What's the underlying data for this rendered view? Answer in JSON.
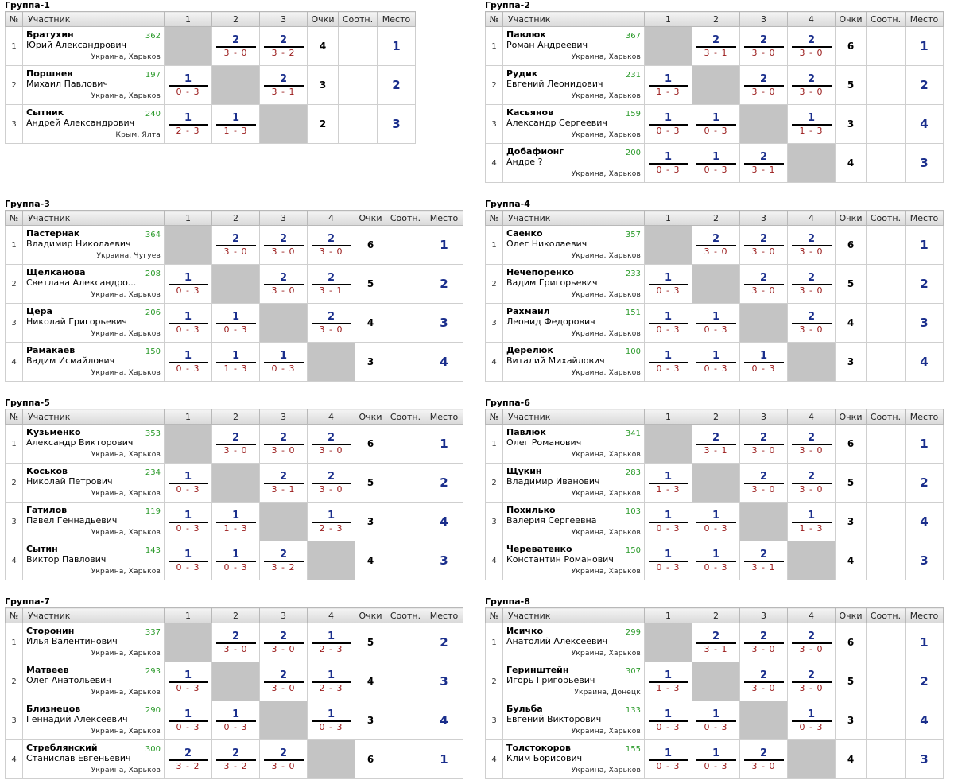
{
  "headers": {
    "num": "№",
    "participant": "Участник",
    "points": "Очки",
    "ratio": "Соотн.",
    "place": "Место"
  },
  "groups": [
    {
      "title": "Группа-1",
      "cols": [
        "1",
        "2",
        "3"
      ],
      "players": [
        {
          "num": "1",
          "surname": "Братухин",
          "name": "Юрий Александрович",
          "rating": "362",
          "location": "Украина, Харьков",
          "results": [
            null,
            {
              "p": "2",
              "s": "3 - 0"
            },
            {
              "p": "2",
              "s": "3 - 2"
            }
          ],
          "points": "4",
          "ratio": "",
          "place": "1"
        },
        {
          "num": "2",
          "surname": "Поршнев",
          "name": "Михаил Павлович",
          "rating": "197",
          "location": "Украина, Харьков",
          "results": [
            {
              "p": "1",
              "s": "0 - 3"
            },
            null,
            {
              "p": "2",
              "s": "3 - 1"
            }
          ],
          "points": "3",
          "ratio": "",
          "place": "2"
        },
        {
          "num": "3",
          "surname": "Сытник",
          "name": "Андрей Александрович",
          "rating": "240",
          "location": "Крым, Ялта",
          "results": [
            {
              "p": "1",
              "s": "2 - 3"
            },
            {
              "p": "1",
              "s": "1 - 3"
            },
            null
          ],
          "points": "2",
          "ratio": "",
          "place": "3"
        }
      ]
    },
    {
      "title": "Группа-2",
      "cols": [
        "1",
        "2",
        "3",
        "4"
      ],
      "players": [
        {
          "num": "1",
          "surname": "Павлюк",
          "name": "Роман Андреевич",
          "rating": "367",
          "location": "Украина, Харьков",
          "results": [
            null,
            {
              "p": "2",
              "s": "3 - 1"
            },
            {
              "p": "2",
              "s": "3 - 0"
            },
            {
              "p": "2",
              "s": "3 - 0"
            }
          ],
          "points": "6",
          "ratio": "",
          "place": "1"
        },
        {
          "num": "2",
          "surname": "Рудик",
          "name": "Евгений Леонидович",
          "rating": "231",
          "location": "Украина, Харьков",
          "results": [
            {
              "p": "1",
              "s": "1 - 3"
            },
            null,
            {
              "p": "2",
              "s": "3 - 0"
            },
            {
              "p": "2",
              "s": "3 - 0"
            }
          ],
          "points": "5",
          "ratio": "",
          "place": "2"
        },
        {
          "num": "3",
          "surname": "Касьянов",
          "name": "Александр Сергеевич",
          "rating": "159",
          "location": "Украина, Харьков",
          "results": [
            {
              "p": "1",
              "s": "0 - 3"
            },
            {
              "p": "1",
              "s": "0 - 3"
            },
            null,
            {
              "p": "1",
              "s": "1 - 3"
            }
          ],
          "points": "3",
          "ratio": "",
          "place": "4"
        },
        {
          "num": "4",
          "surname": "Добафионг",
          "name": "Андре ?",
          "rating": "200",
          "location": "Украина, Харьков",
          "results": [
            {
              "p": "1",
              "s": "0 - 3"
            },
            {
              "p": "1",
              "s": "0 - 3"
            },
            {
              "p": "2",
              "s": "3 - 1"
            },
            null
          ],
          "points": "4",
          "ratio": "",
          "place": "3"
        }
      ]
    },
    {
      "title": "Группа-3",
      "cols": [
        "1",
        "2",
        "3",
        "4"
      ],
      "players": [
        {
          "num": "1",
          "surname": "Пастернак",
          "name": "Владимир Николаевич",
          "rating": "364",
          "location": "Украина, Чугуев",
          "results": [
            null,
            {
              "p": "2",
              "s": "3 - 0"
            },
            {
              "p": "2",
              "s": "3 - 0"
            },
            {
              "p": "2",
              "s": "3 - 0"
            }
          ],
          "points": "6",
          "ratio": "",
          "place": "1"
        },
        {
          "num": "2",
          "surname": "Щелканова",
          "name": "Светлана Александро...",
          "rating": "208",
          "location": "Украина, Харьков",
          "results": [
            {
              "p": "1",
              "s": "0 - 3"
            },
            null,
            {
              "p": "2",
              "s": "3 - 0"
            },
            {
              "p": "2",
              "s": "3 - 1"
            }
          ],
          "points": "5",
          "ratio": "",
          "place": "2"
        },
        {
          "num": "3",
          "surname": "Цера",
          "name": "Николай Григорьевич",
          "rating": "206",
          "location": "Украина, Харьков",
          "results": [
            {
              "p": "1",
              "s": "0 - 3"
            },
            {
              "p": "1",
              "s": "0 - 3"
            },
            null,
            {
              "p": "2",
              "s": "3 - 0"
            }
          ],
          "points": "4",
          "ratio": "",
          "place": "3"
        },
        {
          "num": "4",
          "surname": "Рамакаев",
          "name": "Вадим Исмайлович",
          "rating": "150",
          "location": "Украина, Харьков",
          "results": [
            {
              "p": "1",
              "s": "0 - 3"
            },
            {
              "p": "1",
              "s": "1 - 3"
            },
            {
              "p": "1",
              "s": "0 - 3"
            },
            null
          ],
          "points": "3",
          "ratio": "",
          "place": "4"
        }
      ]
    },
    {
      "title": "Группа-4",
      "cols": [
        "1",
        "2",
        "3",
        "4"
      ],
      "players": [
        {
          "num": "1",
          "surname": "Саенко",
          "name": "Олег Николаевич",
          "rating": "357",
          "location": "Украина, Харьков",
          "results": [
            null,
            {
              "p": "2",
              "s": "3 - 0"
            },
            {
              "p": "2",
              "s": "3 - 0"
            },
            {
              "p": "2",
              "s": "3 - 0"
            }
          ],
          "points": "6",
          "ratio": "",
          "place": "1"
        },
        {
          "num": "2",
          "surname": "Нечепоренко",
          "name": "Вадим Григорьевич",
          "rating": "233",
          "location": "Украина, Харьков",
          "results": [
            {
              "p": "1",
              "s": "0 - 3"
            },
            null,
            {
              "p": "2",
              "s": "3 - 0"
            },
            {
              "p": "2",
              "s": "3 - 0"
            }
          ],
          "points": "5",
          "ratio": "",
          "place": "2"
        },
        {
          "num": "3",
          "surname": "Рахмаил",
          "name": "Леонид Федорович",
          "rating": "151",
          "location": "Украина, Харьков",
          "results": [
            {
              "p": "1",
              "s": "0 - 3"
            },
            {
              "p": "1",
              "s": "0 - 3"
            },
            null,
            {
              "p": "2",
              "s": "3 - 0"
            }
          ],
          "points": "4",
          "ratio": "",
          "place": "3"
        },
        {
          "num": "4",
          "surname": "Дерелюк",
          "name": "Виталий Михайлович",
          "rating": "100",
          "location": "Украина, Харьков",
          "results": [
            {
              "p": "1",
              "s": "0 - 3"
            },
            {
              "p": "1",
              "s": "0 - 3"
            },
            {
              "p": "1",
              "s": "0 - 3"
            },
            null
          ],
          "points": "3",
          "ratio": "",
          "place": "4"
        }
      ]
    },
    {
      "title": "Группа-5",
      "cols": [
        "1",
        "2",
        "3",
        "4"
      ],
      "players": [
        {
          "num": "1",
          "surname": "Кузьменко",
          "name": "Александр Викторович",
          "rating": "353",
          "location": "Украина, Харьков",
          "results": [
            null,
            {
              "p": "2",
              "s": "3 - 0"
            },
            {
              "p": "2",
              "s": "3 - 0"
            },
            {
              "p": "2",
              "s": "3 - 0"
            }
          ],
          "points": "6",
          "ratio": "",
          "place": "1"
        },
        {
          "num": "2",
          "surname": "Коськов",
          "name": "Николай Петрович",
          "rating": "234",
          "location": "Украина, Харьков",
          "results": [
            {
              "p": "1",
              "s": "0 - 3"
            },
            null,
            {
              "p": "2",
              "s": "3 - 1"
            },
            {
              "p": "2",
              "s": "3 - 0"
            }
          ],
          "points": "5",
          "ratio": "",
          "place": "2"
        },
        {
          "num": "3",
          "surname": "Гатилов",
          "name": "Павел Геннадьевич",
          "rating": "119",
          "location": "Украина, Харьков",
          "results": [
            {
              "p": "1",
              "s": "0 - 3"
            },
            {
              "p": "1",
              "s": "1 - 3"
            },
            null,
            {
              "p": "1",
              "s": "2 - 3"
            }
          ],
          "points": "3",
          "ratio": "",
          "place": "4"
        },
        {
          "num": "4",
          "surname": "Сытин",
          "name": "Виктор Павлович",
          "rating": "143",
          "location": "Украина, Харьков",
          "results": [
            {
              "p": "1",
              "s": "0 - 3"
            },
            {
              "p": "1",
              "s": "0 - 3"
            },
            {
              "p": "2",
              "s": "3 - 2"
            },
            null
          ],
          "points": "4",
          "ratio": "",
          "place": "3"
        }
      ]
    },
    {
      "title": "Группа-6",
      "cols": [
        "1",
        "2",
        "3",
        "4"
      ],
      "players": [
        {
          "num": "1",
          "surname": "Павлюк",
          "name": "Олег Романович",
          "rating": "341",
          "location": "Украина, Харьков",
          "results": [
            null,
            {
              "p": "2",
              "s": "3 - 1"
            },
            {
              "p": "2",
              "s": "3 - 0"
            },
            {
              "p": "2",
              "s": "3 - 0"
            }
          ],
          "points": "6",
          "ratio": "",
          "place": "1"
        },
        {
          "num": "2",
          "surname": "Щукин",
          "name": "Владимир Иванович",
          "rating": "283",
          "location": "Украина, Харьков",
          "results": [
            {
              "p": "1",
              "s": "1 - 3"
            },
            null,
            {
              "p": "2",
              "s": "3 - 0"
            },
            {
              "p": "2",
              "s": "3 - 0"
            }
          ],
          "points": "5",
          "ratio": "",
          "place": "2"
        },
        {
          "num": "3",
          "surname": "Похилько",
          "name": "Валерия Сергеевна",
          "rating": "103",
          "location": "Украина, Харьков",
          "results": [
            {
              "p": "1",
              "s": "0 - 3"
            },
            {
              "p": "1",
              "s": "0 - 3"
            },
            null,
            {
              "p": "1",
              "s": "1 - 3"
            }
          ],
          "points": "3",
          "ratio": "",
          "place": "4"
        },
        {
          "num": "4",
          "surname": "Череватенко",
          "name": "Константин Романович",
          "rating": "150",
          "location": "Украина, Харьков",
          "results": [
            {
              "p": "1",
              "s": "0 - 3"
            },
            {
              "p": "1",
              "s": "0 - 3"
            },
            {
              "p": "2",
              "s": "3 - 1"
            },
            null
          ],
          "points": "4",
          "ratio": "",
          "place": "3"
        }
      ]
    },
    {
      "title": "Группа-7",
      "cols": [
        "1",
        "2",
        "3",
        "4"
      ],
      "players": [
        {
          "num": "1",
          "surname": "Сторонин",
          "name": "Илья Валентинович",
          "rating": "337",
          "location": "Украина, Харьков",
          "results": [
            null,
            {
              "p": "2",
              "s": "3 - 0"
            },
            {
              "p": "2",
              "s": "3 - 0"
            },
            {
              "p": "1",
              "s": "2 - 3"
            }
          ],
          "points": "5",
          "ratio": "",
          "place": "2"
        },
        {
          "num": "2",
          "surname": "Матвеев",
          "name": "Олег Анатольевич",
          "rating": "293",
          "location": "Украина, Харьков",
          "results": [
            {
              "p": "1",
              "s": "0 - 3"
            },
            null,
            {
              "p": "2",
              "s": "3 - 0"
            },
            {
              "p": "1",
              "s": "2 - 3"
            }
          ],
          "points": "4",
          "ratio": "",
          "place": "3"
        },
        {
          "num": "3",
          "surname": "Близнецов",
          "name": "Геннадий Алексеевич",
          "rating": "290",
          "location": "Украина, Харьков",
          "results": [
            {
              "p": "1",
              "s": "0 - 3"
            },
            {
              "p": "1",
              "s": "0 - 3"
            },
            null,
            {
              "p": "1",
              "s": "0 - 3"
            }
          ],
          "points": "3",
          "ratio": "",
          "place": "4"
        },
        {
          "num": "4",
          "surname": "Стреблянский",
          "name": "Станислав Евгеньевич",
          "rating": "300",
          "location": "Украина, Харьков",
          "results": [
            {
              "p": "2",
              "s": "3 - 2"
            },
            {
              "p": "2",
              "s": "3 - 2"
            },
            {
              "p": "2",
              "s": "3 - 0"
            },
            null
          ],
          "points": "6",
          "ratio": "",
          "place": "1"
        }
      ]
    },
    {
      "title": "Группа-8",
      "cols": [
        "1",
        "2",
        "3",
        "4"
      ],
      "players": [
        {
          "num": "1",
          "surname": "Исичко",
          "name": "Анатолий Алексеевич",
          "rating": "299",
          "location": "Украина, Харьков",
          "results": [
            null,
            {
              "p": "2",
              "s": "3 - 1"
            },
            {
              "p": "2",
              "s": "3 - 0"
            },
            {
              "p": "2",
              "s": "3 - 0"
            }
          ],
          "points": "6",
          "ratio": "",
          "place": "1"
        },
        {
          "num": "2",
          "surname": "Геринштейн",
          "name": "Игорь Григорьевич",
          "rating": "307",
          "location": "Украина, Донецк",
          "results": [
            {
              "p": "1",
              "s": "1 - 3"
            },
            null,
            {
              "p": "2",
              "s": "3 - 0"
            },
            {
              "p": "2",
              "s": "3 - 0"
            }
          ],
          "points": "5",
          "ratio": "",
          "place": "2"
        },
        {
          "num": "3",
          "surname": "Бульба",
          "name": "Евгений Викторович",
          "rating": "133",
          "location": "Украина, Харьков",
          "results": [
            {
              "p": "1",
              "s": "0 - 3"
            },
            {
              "p": "1",
              "s": "0 - 3"
            },
            null,
            {
              "p": "1",
              "s": "0 - 3"
            }
          ],
          "points": "3",
          "ratio": "",
          "place": "4"
        },
        {
          "num": "4",
          "surname": "Толстокоров",
          "name": "Клим Борисович",
          "rating": "155",
          "location": "Украина, Харьков",
          "results": [
            {
              "p": "1",
              "s": "0 - 3"
            },
            {
              "p": "1",
              "s": "0 - 3"
            },
            {
              "p": "2",
              "s": "3 - 0"
            },
            null
          ],
          "points": "4",
          "ratio": "",
          "place": "3"
        }
      ]
    }
  ]
}
